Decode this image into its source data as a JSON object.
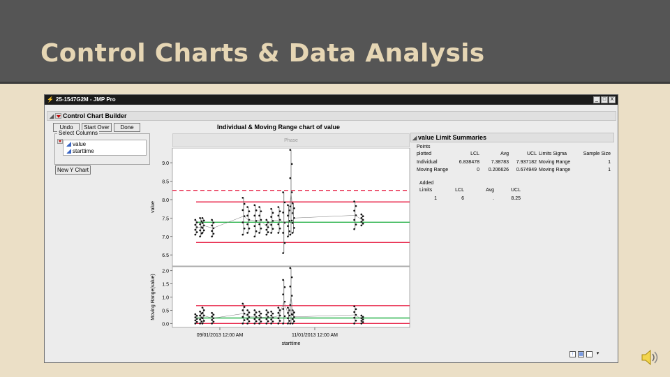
{
  "slide": {
    "title": "Control Charts & Data Analysis"
  },
  "window": {
    "title": "25-1547G2M - JMP Pro",
    "buttons": [
      "_",
      "□",
      "X"
    ]
  },
  "builder": {
    "panel_title": "Control Chart Builder",
    "undo_label": "Undo",
    "start_over_label": "Start Over",
    "done_label": "Done",
    "select_columns_title": "Select Columns",
    "columns": [
      "value",
      "starttime"
    ],
    "new_y_chart_label": "New Y Chart"
  },
  "chart": {
    "title": "Individual & Moving Range chart of value",
    "phase_label": "Phase",
    "xlabel": "starttime",
    "x_ticks": [
      "09/01/2013 12:00 AM",
      "11/01/2013 12:00 AM"
    ]
  },
  "chart_data": [
    {
      "type": "scatter",
      "title": "",
      "ylabel": "value",
      "ylim": [
        6.2,
        9.4
      ],
      "y_ticks": [
        "9.0",
        "8.5",
        "8.0",
        "7.5",
        "7.0",
        "6.5"
      ],
      "limits": {
        "LCL": 6.838478,
        "Avg": 7.38783,
        "UCL": 7.937182,
        "added_UCL": 8.25
      },
      "series": [
        {
          "name": "",
          "clusters": [
            {
              "x": 0.1,
              "min": 7.05,
              "max": 7.45
            },
            {
              "x": 0.12,
              "min": 7.0,
              "max": 7.5
            },
            {
              "x": 0.13,
              "min": 7.1,
              "max": 7.5
            },
            {
              "x": 0.17,
              "min": 7.0,
              "max": 7.45
            },
            {
              "x": 0.3,
              "min": 7.05,
              "max": 8.05
            },
            {
              "x": 0.32,
              "min": 7.1,
              "max": 7.8
            },
            {
              "x": 0.35,
              "min": 7.0,
              "max": 7.85
            },
            {
              "x": 0.37,
              "min": 7.1,
              "max": 7.8
            },
            {
              "x": 0.4,
              "min": 7.05,
              "max": 7.45
            },
            {
              "x": 0.42,
              "min": 7.1,
              "max": 7.75
            },
            {
              "x": 0.45,
              "min": 7.1,
              "max": 7.8
            },
            {
              "x": 0.47,
              "min": 6.55,
              "max": 8.2
            },
            {
              "x": 0.49,
              "min": 7.0,
              "max": 7.85
            },
            {
              "x": 0.5,
              "min": 7.05,
              "max": 9.35
            },
            {
              "x": 0.51,
              "min": 7.1,
              "max": 7.9
            },
            {
              "x": 0.77,
              "min": 7.2,
              "max": 7.95
            },
            {
              "x": 0.8,
              "min": 7.3,
              "max": 7.6
            }
          ]
        }
      ]
    },
    {
      "type": "scatter",
      "title": "",
      "ylabel": "Moving Range(value)",
      "ylim": [
        -0.15,
        2.15
      ],
      "y_ticks": [
        "2.0",
        "1.5",
        "1.0",
        "0.5",
        "0.0"
      ],
      "limits": {
        "LCL": 0,
        "Avg": 0.206626,
        "UCL": 0.674949
      },
      "series": [
        {
          "name": "",
          "clusters": [
            {
              "x": 0.1,
              "min": 0.0,
              "max": 0.35
            },
            {
              "x": 0.12,
              "min": 0.0,
              "max": 0.45
            },
            {
              "x": 0.13,
              "min": 0.0,
              "max": 0.6
            },
            {
              "x": 0.17,
              "min": 0.0,
              "max": 0.4
            },
            {
              "x": 0.3,
              "min": 0.0,
              "max": 0.75
            },
            {
              "x": 0.32,
              "min": 0.0,
              "max": 0.5
            },
            {
              "x": 0.35,
              "min": 0.0,
              "max": 0.5
            },
            {
              "x": 0.37,
              "min": 0.0,
              "max": 0.45
            },
            {
              "x": 0.4,
              "min": 0.0,
              "max": 0.5
            },
            {
              "x": 0.42,
              "min": 0.0,
              "max": 0.45
            },
            {
              "x": 0.45,
              "min": 0.0,
              "max": 0.6
            },
            {
              "x": 0.47,
              "min": 0.0,
              "max": 1.65
            },
            {
              "x": 0.49,
              "min": 0.0,
              "max": 0.6
            },
            {
              "x": 0.5,
              "min": 0.0,
              "max": 2.1
            },
            {
              "x": 0.51,
              "min": 0.0,
              "max": 0.5
            },
            {
              "x": 0.77,
              "min": 0.0,
              "max": 0.65
            },
            {
              "x": 0.8,
              "min": 0.0,
              "max": 0.3
            }
          ]
        }
      ]
    }
  ],
  "summary": {
    "title": "value Limit Summaries",
    "headers": [
      "Points\nplotted",
      "LCL",
      "Avg",
      "UCL",
      "Limits Sigma",
      "Sample Size"
    ],
    "rows": [
      [
        "Individual",
        "6.838478",
        "7.38783",
        "7.937182",
        "Moving Range",
        "1"
      ],
      [
        "Moving Range",
        "0",
        "0.206626",
        "0.674949",
        "Moving Range",
        "1"
      ]
    ],
    "added_headers": [
      "Added\nLimits",
      "LCL",
      "Avg",
      "UCL"
    ],
    "added_row": [
      "1",
      "6",
      ".",
      "8.25"
    ]
  },
  "colors": {
    "limit_line": "#e8294c",
    "avg_line": "#29b14a",
    "added_limit": "#e8294c",
    "header_bg": "#555555",
    "slide_bg": "#ebdfc6",
    "title_text": "#e6d6b4"
  }
}
